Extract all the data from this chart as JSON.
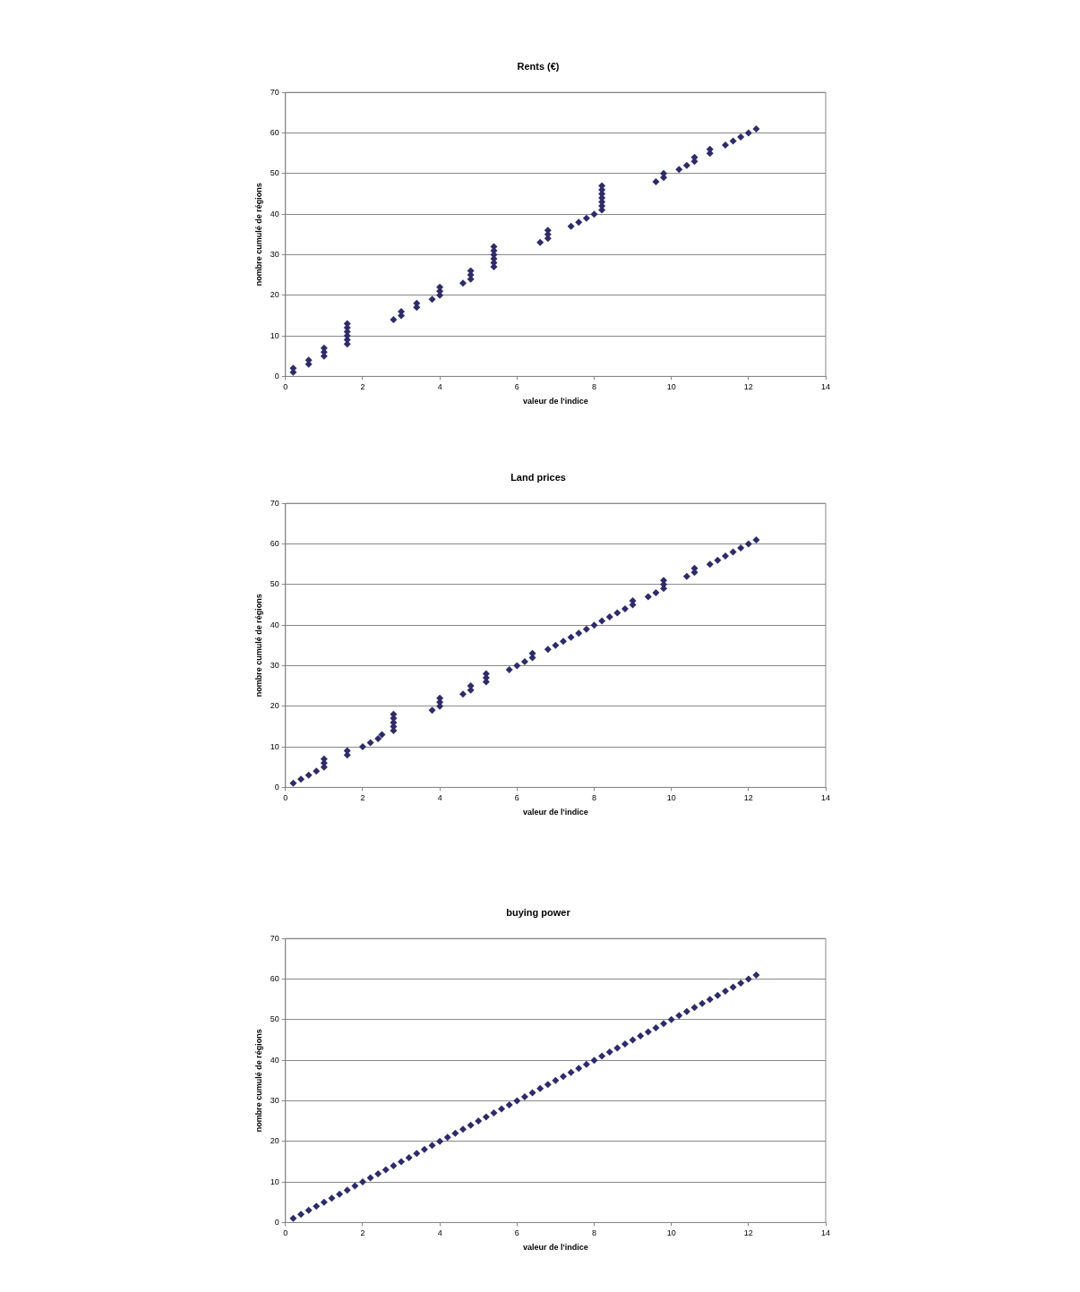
{
  "chart_data": [
    {
      "type": "scatter",
      "title": "Rents (€)",
      "xlabel": "valeur de l'indice",
      "ylabel": "nombre cumulé de régions",
      "marker": "diamond",
      "grid": "y",
      "xlim": [
        0,
        14
      ],
      "xticks": [
        0,
        2,
        4,
        6,
        8,
        10,
        12,
        14
      ],
      "ylim": [
        0,
        70
      ],
      "yticks": [
        0,
        10,
        20,
        30,
        40,
        50,
        60,
        70
      ],
      "color": "#2e2a6c",
      "x": [
        0.2,
        0.2,
        0.6,
        0.6,
        1.0,
        1.0,
        1.0,
        1.6,
        1.6,
        1.6,
        1.6,
        1.6,
        1.6,
        2.8,
        3.0,
        3.0,
        3.4,
        3.4,
        3.8,
        4.0,
        4.0,
        4.0,
        4.6,
        4.8,
        4.8,
        4.8,
        5.4,
        5.4,
        5.4,
        5.4,
        5.4,
        5.4,
        6.6,
        6.8,
        6.8,
        6.8,
        7.4,
        7.6,
        7.8,
        8.0,
        8.2,
        8.2,
        8.2,
        8.2,
        8.2,
        8.2,
        8.2,
        9.6,
        9.8,
        9.8,
        10.2,
        10.4,
        10.6,
        10.6,
        11.0,
        11.0,
        11.4,
        11.6,
        11.8,
        12.0,
        12.2
      ],
      "values": [
        1,
        2,
        3,
        4,
        5,
        6,
        7,
        8,
        9,
        10,
        11,
        12,
        13,
        14,
        15,
        16,
        17,
        18,
        19,
        20,
        21,
        22,
        23,
        24,
        25,
        26,
        27,
        28,
        29,
        30,
        31,
        32,
        33,
        34,
        35,
        36,
        37,
        38,
        39,
        40,
        41,
        42,
        43,
        44,
        45,
        46,
        47,
        48,
        49,
        50,
        51,
        52,
        53,
        54,
        55,
        56,
        57,
        58,
        59,
        60,
        61
      ]
    },
    {
      "type": "scatter",
      "title": "Land prices",
      "xlabel": "valeur de l'indice",
      "ylabel": "nombre cumulé de régions",
      "marker": "diamond",
      "grid": "y",
      "xlim": [
        0,
        14
      ],
      "xticks": [
        0,
        2,
        4,
        6,
        8,
        10,
        12,
        14
      ],
      "ylim": [
        0,
        70
      ],
      "yticks": [
        0,
        10,
        20,
        30,
        40,
        50,
        60,
        70
      ],
      "color": "#2e2a6c",
      "x": [
        0.2,
        0.4,
        0.6,
        0.8,
        1.0,
        1.0,
        1.0,
        1.6,
        1.6,
        2.0,
        2.2,
        2.4,
        2.5,
        2.8,
        2.8,
        2.8,
        2.8,
        2.8,
        3.8,
        4.0,
        4.0,
        4.0,
        4.6,
        4.8,
        4.8,
        5.2,
        5.2,
        5.2,
        5.8,
        6.0,
        6.2,
        6.4,
        6.4,
        6.8,
        7.0,
        7.2,
        7.4,
        7.6,
        7.8,
        8.0,
        8.2,
        8.4,
        8.6,
        8.8,
        9.0,
        9.0,
        9.4,
        9.6,
        9.8,
        9.8,
        9.8,
        10.4,
        10.6,
        10.6,
        11.0,
        11.2,
        11.4,
        11.6,
        11.8,
        12.0,
        12.2
      ],
      "values": [
        1,
        2,
        3,
        4,
        5,
        6,
        7,
        8,
        9,
        10,
        11,
        12,
        13,
        14,
        15,
        16,
        17,
        18,
        19,
        20,
        21,
        22,
        23,
        24,
        25,
        26,
        27,
        28,
        29,
        30,
        31,
        32,
        33,
        34,
        35,
        36,
        37,
        38,
        39,
        40,
        41,
        42,
        43,
        44,
        45,
        46,
        47,
        48,
        49,
        50,
        51,
        52,
        53,
        54,
        55,
        56,
        57,
        58,
        59,
        60,
        61
      ]
    },
    {
      "type": "scatter",
      "title": "buying power",
      "xlabel": "valeur de l'indice",
      "ylabel": "nombre cumulé de régions",
      "marker": "diamond",
      "grid": "y",
      "xlim": [
        0,
        14
      ],
      "xticks": [
        0,
        2,
        4,
        6,
        8,
        10,
        12,
        14
      ],
      "ylim": [
        0,
        70
      ],
      "yticks": [
        0,
        10,
        20,
        30,
        40,
        50,
        60,
        70
      ],
      "color": "#2e2a6c",
      "x": [
        0.2,
        0.4,
        0.6,
        0.8,
        1.0,
        1.2,
        1.4,
        1.6,
        1.8,
        2.0,
        2.2,
        2.4,
        2.6,
        2.8,
        3.0,
        3.2,
        3.4,
        3.6,
        3.8,
        4.0,
        4.2,
        4.4,
        4.6,
        4.8,
        5.0,
        5.2,
        5.4,
        5.6,
        5.8,
        6.0,
        6.2,
        6.4,
        6.6,
        6.8,
        7.0,
        7.2,
        7.4,
        7.6,
        7.8,
        8.0,
        8.2,
        8.4,
        8.6,
        8.8,
        9.0,
        9.2,
        9.4,
        9.6,
        9.8,
        10.0,
        10.2,
        10.4,
        10.6,
        10.8,
        11.0,
        11.2,
        11.4,
        11.6,
        11.8,
        12.0,
        12.2
      ],
      "values": [
        1,
        2,
        3,
        4,
        5,
        6,
        7,
        8,
        9,
        10,
        11,
        12,
        13,
        14,
        15,
        16,
        17,
        18,
        19,
        20,
        21,
        22,
        23,
        24,
        25,
        26,
        27,
        28,
        29,
        30,
        31,
        32,
        33,
        34,
        35,
        36,
        37,
        38,
        39,
        40,
        41,
        42,
        43,
        44,
        45,
        46,
        47,
        48,
        49,
        50,
        51,
        52,
        53,
        54,
        55,
        56,
        57,
        58,
        59,
        60,
        61
      ]
    }
  ]
}
